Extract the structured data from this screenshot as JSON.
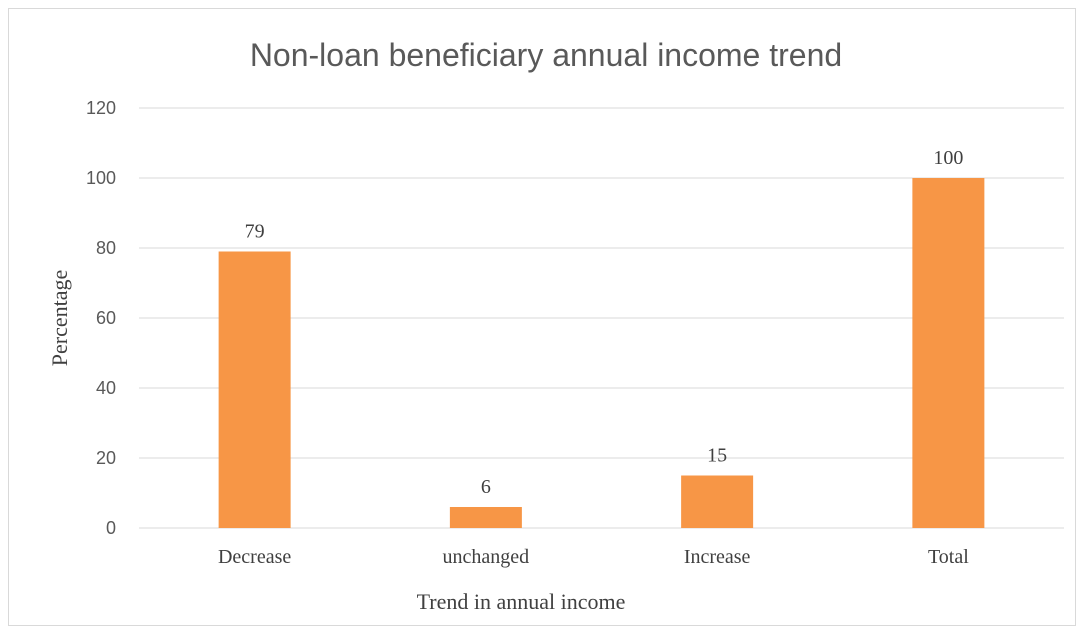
{
  "chart_data": {
    "type": "bar",
    "title": "Non-loan beneficiary annual income trend",
    "xlabel": "Trend in annual income",
    "ylabel": "Percentage",
    "categories": [
      "Decrease",
      "unchanged",
      "Increase",
      "Total"
    ],
    "values": [
      79,
      6,
      15,
      100
    ],
    "ylim": [
      0,
      120
    ],
    "yticks": [
      0,
      20,
      40,
      60,
      80,
      100,
      120
    ],
    "grid": true,
    "bar_color": "#f79646",
    "data_labels": true
  }
}
